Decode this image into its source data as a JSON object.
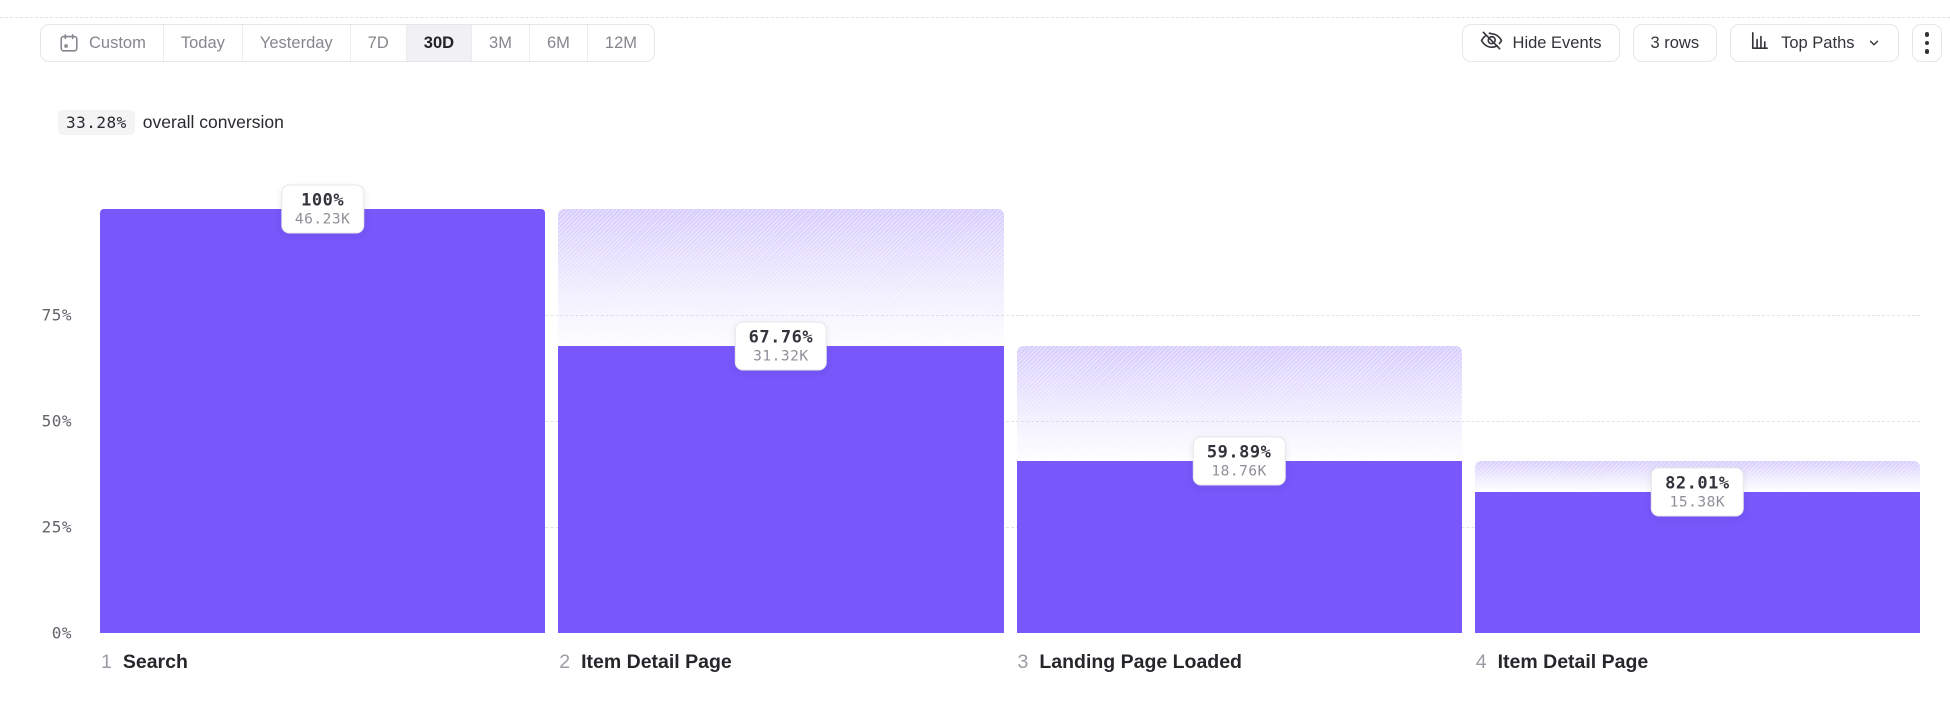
{
  "toolbar": {
    "date_ranges": [
      {
        "label": "Custom",
        "icon": "calendar",
        "selected": false
      },
      {
        "label": "Today",
        "selected": false
      },
      {
        "label": "Yesterday",
        "selected": false
      },
      {
        "label": "7D",
        "selected": false
      },
      {
        "label": "30D",
        "selected": true
      },
      {
        "label": "3M",
        "selected": false
      },
      {
        "label": "6M",
        "selected": false
      },
      {
        "label": "12M",
        "selected": false
      }
    ],
    "actions": {
      "hide_events_label": "Hide Events",
      "rows_label": "3 rows",
      "top_paths_label": "Top Paths"
    }
  },
  "summary": {
    "value": "33.28%",
    "text": "overall conversion"
  },
  "chart_data": {
    "type": "bar",
    "subtype": "funnel",
    "title": "33.28% overall conversion",
    "ylim": [
      0,
      100
    ],
    "grid": true,
    "yticks": [
      {
        "label": "75%",
        "value": 75
      },
      {
        "label": "50%",
        "value": 50
      },
      {
        "label": "25%",
        "value": 25
      },
      {
        "label": "0%",
        "value": 0
      }
    ],
    "colors": {
      "bar": "#7857fb",
      "dropoff_top": "#d9d2f8"
    },
    "steps": [
      {
        "index": "1",
        "name": "Search",
        "pct_label": "100%",
        "count_label": "46.23K",
        "count": 46230,
        "overall_pct": 100,
        "prev_overall_pct": 100
      },
      {
        "index": "2",
        "name": "Item Detail Page",
        "pct_label": "67.76%",
        "count_label": "31.32K",
        "count": 31320,
        "overall_pct": 67.76,
        "prev_overall_pct": 100
      },
      {
        "index": "3",
        "name": "Landing Page Loaded",
        "pct_label": "59.89%",
        "count_label": "18.76K",
        "count": 18760,
        "overall_pct": 40.58,
        "prev_overall_pct": 67.76
      },
      {
        "index": "4",
        "name": "Item Detail Page",
        "pct_label": "82.01%",
        "count_label": "15.38K",
        "count": 15380,
        "overall_pct": 33.27,
        "prev_overall_pct": 40.58
      }
    ]
  }
}
